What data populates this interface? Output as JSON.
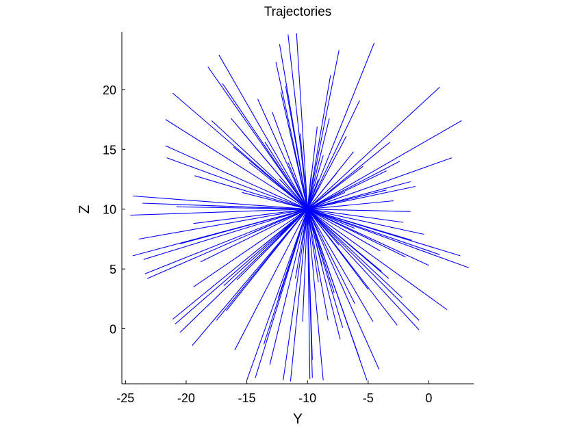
{
  "chart_data": {
    "type": "line",
    "title": "Trajectories",
    "xlabel": "Y",
    "ylabel": "Z",
    "xlim": [
      -25.3,
      3.7
    ],
    "ylim": [
      -4.6,
      24.8
    ],
    "xticks": [
      -25,
      -20,
      -15,
      -10,
      -5,
      0
    ],
    "yticks": [
      0,
      5,
      10,
      15,
      20
    ],
    "grid": false,
    "line_color": "#0000ff",
    "origin": [
      -10,
      10
    ],
    "endpoints": [
      [
        -10.9,
        24.7
      ],
      [
        -11.6,
        24.6
      ],
      [
        -7.4,
        23.3
      ],
      [
        -4.5,
        23.9
      ],
      [
        -12.6,
        22.3
      ],
      [
        -17.3,
        22.9
      ],
      [
        -18.2,
        21.9
      ],
      [
        -17.0,
        20.5
      ],
      [
        -5.7,
        19.1
      ],
      [
        0.9,
        20.2
      ],
      [
        -21.1,
        19.7
      ],
      [
        -12.2,
        19.8
      ],
      [
        -14.1,
        19.2
      ],
      [
        -21.7,
        17.5
      ],
      [
        -16.3,
        17.6
      ],
      [
        2.7,
        17.4
      ],
      [
        -3.2,
        15.6
      ],
      [
        -21.7,
        15.3
      ],
      [
        -21.6,
        14.3
      ],
      [
        1.9,
        14.3
      ],
      [
        -3.5,
        13.2
      ],
      [
        -1.5,
        12.3
      ],
      [
        -1.1,
        11.9
      ],
      [
        -24.4,
        11.1
      ],
      [
        -23.6,
        10.5
      ],
      [
        -24.6,
        9.5
      ],
      [
        -2.1,
        8.9
      ],
      [
        -23.9,
        7.5
      ],
      [
        -1.4,
        7.4
      ],
      [
        2.6,
        6.1
      ],
      [
        3.3,
        5.1
      ],
      [
        0.9,
        6.2
      ],
      [
        0.0,
        5.3
      ],
      [
        -24.4,
        6.1
      ],
      [
        -23.5,
        5.8
      ],
      [
        -23.4,
        4.6
      ],
      [
        -23.2,
        4.2
      ],
      [
        -2.2,
        2.6
      ],
      [
        -0.8,
        0.7
      ],
      [
        1.5,
        1.6
      ],
      [
        -0.8,
        -0.1
      ],
      [
        -21.1,
        0.8
      ],
      [
        -20.9,
        0.4
      ],
      [
        -20.5,
        -0.3
      ],
      [
        -2.6,
        0.3
      ],
      [
        -19.5,
        -1.4
      ],
      [
        -4.1,
        -3.4
      ],
      [
        -5.1,
        -4.3
      ],
      [
        -5.7,
        -2.5
      ],
      [
        -7.3,
        -0.9
      ],
      [
        -8.7,
        -4.3
      ],
      [
        -9.6,
        -4.1
      ],
      [
        -9.8,
        -4.2
      ],
      [
        -11.4,
        -4.4
      ],
      [
        -12.0,
        -4.3
      ],
      [
        -13.1,
        -3.0
      ],
      [
        -14.3,
        -4.1
      ],
      [
        -15.0,
        -4.3
      ],
      [
        -16.0,
        -1.8
      ],
      [
        -17.5,
        0.7
      ],
      [
        -19.4,
        3.5
      ],
      [
        -20.5,
        7.1
      ],
      [
        -17.9,
        17.4
      ],
      [
        -15.4,
        16.5
      ],
      [
        -11.8,
        20.3
      ],
      [
        -12.3,
        23.8
      ],
      [
        -8.1,
        21.2
      ],
      [
        -9.7,
        12.9
      ],
      [
        -9.1,
        12.5
      ],
      [
        -3.5,
        11.6
      ],
      [
        -7.4,
        7.0
      ],
      [
        -12.2,
        7.9
      ],
      [
        -14.6,
        8.0
      ],
      [
        -12.3,
        12.5
      ],
      [
        -15.4,
        11.4
      ],
      [
        -8.7,
        14.5
      ],
      [
        -6.9,
        11.4
      ],
      [
        -7.8,
        3.0
      ],
      [
        -9.1,
        3.9
      ],
      [
        -11.0,
        4.2
      ],
      [
        -15.8,
        4.1
      ],
      [
        -16.7,
        1.5
      ],
      [
        -13.6,
        -1.3
      ],
      [
        -8.3,
        0.7
      ],
      [
        -6.1,
        2.1
      ],
      [
        -4.0,
        6.5
      ],
      [
        -1.5,
        9.8
      ],
      [
        -6.1,
        8.4
      ],
      [
        -7.6,
        13.0
      ],
      [
        -11.6,
        13.9
      ],
      [
        -13.5,
        15.6
      ],
      [
        -14.8,
        13.9
      ],
      [
        -18.3,
        10.3
      ],
      [
        -19.4,
        8.8
      ],
      [
        -13.6,
        7.0
      ],
      [
        -8.8,
        5.3
      ],
      [
        -5.0,
        3.3
      ],
      [
        -3.3,
        4.2
      ],
      [
        -1.9,
        6.0
      ],
      [
        -5.4,
        13.6
      ],
      [
        -6.8,
        16.1
      ],
      [
        -9.2,
        16.9
      ],
      [
        -10.6,
        16.3
      ],
      [
        -12.9,
        18.1
      ],
      [
        -16.1,
        15.2
      ],
      [
        -19.3,
        12.8
      ],
      [
        -20.8,
        10.2
      ],
      [
        -18.8,
        5.6
      ],
      [
        -16.9,
        3.6
      ],
      [
        -12.4,
        2.6
      ],
      [
        -10.4,
        0.6
      ],
      [
        -9.6,
        -2.6
      ],
      [
        -7.1,
        0.1
      ],
      [
        -4.6,
        0.6
      ],
      [
        -3.9,
        4.8
      ],
      [
        -0.4,
        7.9
      ],
      [
        -2.9,
        10.7
      ],
      [
        -2.4,
        14.0
      ],
      [
        -6.2,
        14.8
      ],
      [
        -8.2,
        17.6
      ]
    ]
  }
}
